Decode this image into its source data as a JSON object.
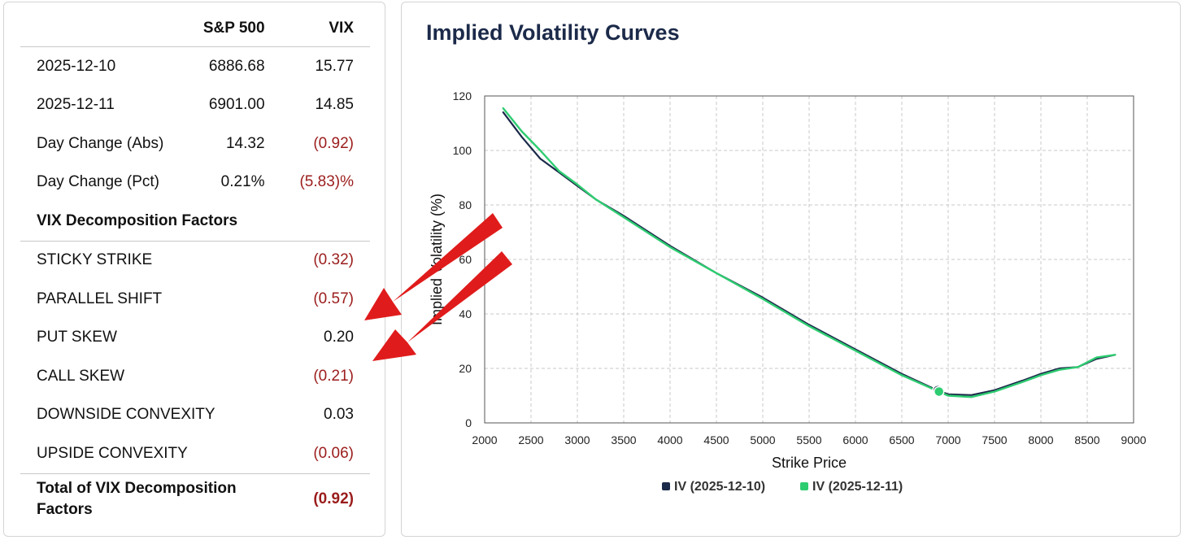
{
  "table": {
    "headers": [
      "",
      "S&P 500",
      "VIX"
    ],
    "rows": [
      {
        "label": "2025-12-10",
        "sp": "6886.68",
        "vix": "15.77",
        "neg": false
      },
      {
        "label": "2025-12-11",
        "sp": "6901.00",
        "vix": "14.85",
        "neg": false
      },
      {
        "label": "Day Change (Abs)",
        "sp": "14.32",
        "vix": "(0.92)",
        "neg": true
      },
      {
        "label": "Day Change (Pct)",
        "sp": "0.21%",
        "vix": "(5.83)%",
        "neg": true
      }
    ],
    "section_label": "VIX Decomposition Factors",
    "factors": [
      {
        "label": "STICKY STRIKE",
        "value": "(0.32)",
        "neg": true
      },
      {
        "label": "PARALLEL SHIFT",
        "value": "(0.57)",
        "neg": true
      },
      {
        "label": "PUT SKEW",
        "value": "0.20",
        "neg": false
      },
      {
        "label": "CALL SKEW",
        "value": "(0.21)",
        "neg": true
      },
      {
        "label": "DOWNSIDE CONVEXITY",
        "value": "0.03",
        "neg": false
      },
      {
        "label": "UPSIDE CONVEXITY",
        "value": "(0.06)",
        "neg": true
      }
    ],
    "total_label_1": "Total of VIX Decomposition",
    "total_label_2": "Factors",
    "total_value": "(0.92)"
  },
  "colors": {
    "negative": "#9b1c1c",
    "series_1": "#1c2a4a",
    "series_2": "#2ecc71",
    "arrow": "#e01b1b"
  },
  "chart_data": {
    "type": "line",
    "title": "Implied Volatility Curves",
    "xlabel": "Strike Price",
    "ylabel": "Implied Volatility (%)",
    "xlim": [
      2000,
      9000
    ],
    "ylim": [
      0,
      120
    ],
    "xticks": [
      2000,
      2500,
      3000,
      3500,
      4000,
      4500,
      5000,
      5500,
      6000,
      6500,
      7000,
      7500,
      8000,
      8500,
      9000
    ],
    "yticks": [
      0,
      20,
      40,
      60,
      80,
      100,
      120
    ],
    "grid": true,
    "legend_position": "bottom",
    "series": [
      {
        "name": "IV (2025-12-10)",
        "color": "#1c2a4a",
        "x": [
          2200,
          2400,
          2600,
          2800,
          3000,
          3200,
          3500,
          4000,
          4500,
          5000,
          5500,
          6000,
          6500,
          6880,
          7000,
          7250,
          7500,
          7800,
          8000,
          8200,
          8400,
          8600,
          8800
        ],
        "y": [
          114,
          105,
          97,
          92,
          87,
          82,
          76,
          65,
          55,
          46,
          36,
          27,
          18,
          12,
          10.5,
          10.2,
          12,
          15.5,
          18,
          20,
          20.5,
          23.5,
          25
        ]
      },
      {
        "name": "IV (2025-12-11)",
        "color": "#2ecc71",
        "x": [
          2200,
          2400,
          2600,
          2800,
          3000,
          3200,
          3500,
          4000,
          4500,
          5000,
          5500,
          6000,
          6500,
          6900,
          7000,
          7250,
          7500,
          7800,
          8000,
          8200,
          8400,
          8600,
          8800
        ],
        "y": [
          115.5,
          107,
          100,
          92.5,
          87.5,
          82,
          75.5,
          64.5,
          55,
          45.5,
          35.5,
          26.5,
          17.5,
          11.5,
          10,
          9.5,
          11.5,
          15,
          17.5,
          19.5,
          20.5,
          24,
          25
        ]
      }
    ],
    "markers": [
      {
        "series": 0,
        "x": 6887,
        "y": 12
      },
      {
        "series": 1,
        "x": 6901,
        "y": 11.5
      }
    ]
  }
}
